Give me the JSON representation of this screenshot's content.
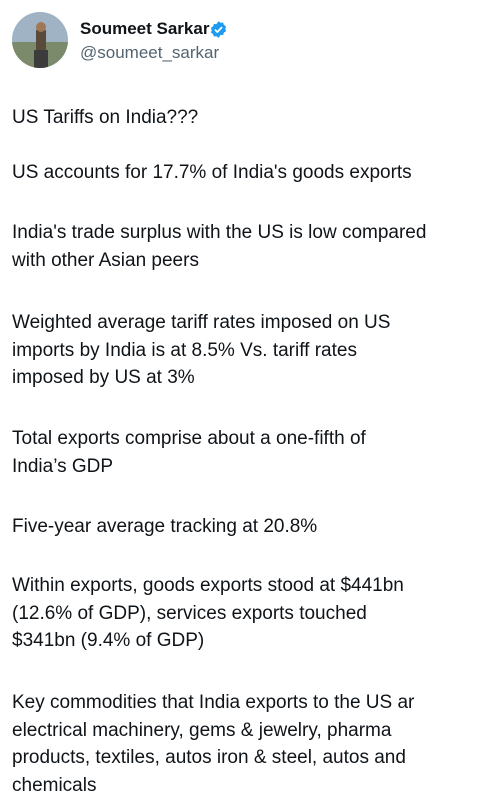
{
  "author": {
    "name": "Soumeet Sarkar",
    "handle": "@soumeet_sarkar"
  },
  "paragraphs": [
    [
      "US Tariffs on India???"
    ],
    [
      "US accounts for 17.7% of India's goods exports"
    ],
    [
      "India's trade surplus with the US is low compared",
      "with other Asian peers"
    ],
    [
      "Weighted average tariff rates imposed on US",
      "imports by India is at 8.5% Vs. tariff rates",
      "imposed by US at 3%"
    ],
    [
      "Total exports comprise about a one-fifth of",
      "India’s GDP"
    ],
    [
      "Five-year average tracking at 20.8%"
    ],
    [
      "Within exports, goods exports stood at $441bn",
      "(12.6% of GDP), services exports touched",
      "$341bn (9.4% of GDP)"
    ],
    [
      "Key commodities that India exports to the US ar",
      "electrical machinery, gems & jewelry, pharma",
      "products, textiles, autos iron & steel, autos and",
      "chemicals"
    ]
  ]
}
